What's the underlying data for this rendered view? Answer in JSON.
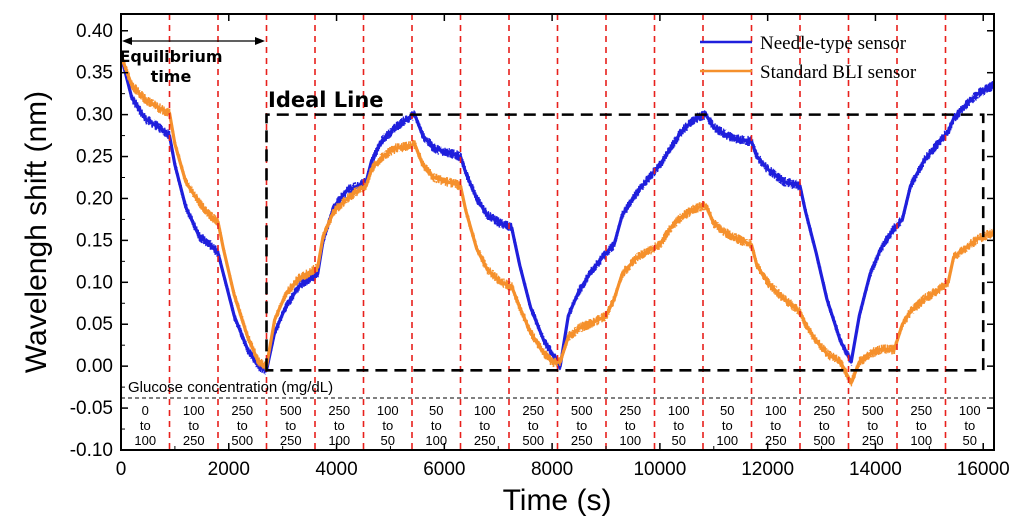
{
  "chart_data": {
    "type": "line",
    "xlabel": "Time (s)",
    "ylabel": "Wavelengh shift (nm)",
    "xlim": [
      0,
      16200
    ],
    "ylim": [
      -0.1,
      0.42
    ],
    "xticks": [
      "0",
      "2000",
      "4000",
      "6000",
      "8000",
      "10000",
      "12000",
      "14000",
      "16000"
    ],
    "yticks": [
      "-0.10",
      "-0.05",
      "0.00",
      "0.05",
      "0.10",
      "0.15",
      "0.20",
      "0.25",
      "0.30",
      "0.35",
      "0.40"
    ],
    "legend_position": "top-right",
    "series": [
      {
        "name": "Needle-type sensor",
        "color": "#1f1fdc",
        "points": [
          [
            0,
            0.37
          ],
          [
            200,
            0.32
          ],
          [
            450,
            0.295
          ],
          [
            700,
            0.285
          ],
          [
            900,
            0.275
          ],
          [
            1000,
            0.24
          ],
          [
            1200,
            0.19
          ],
          [
            1450,
            0.155
          ],
          [
            1650,
            0.145
          ],
          [
            1800,
            0.135
          ],
          [
            1900,
            0.11
          ],
          [
            2100,
            0.06
          ],
          [
            2350,
            0.02
          ],
          [
            2550,
            0.0
          ],
          [
            2700,
            -0.005
          ],
          [
            2850,
            0.04
          ],
          [
            3050,
            0.07
          ],
          [
            3300,
            0.095
          ],
          [
            3500,
            0.105
          ],
          [
            3650,
            0.11
          ],
          [
            3750,
            0.15
          ],
          [
            3950,
            0.19
          ],
          [
            4200,
            0.21
          ],
          [
            4400,
            0.215
          ],
          [
            4550,
            0.22
          ],
          [
            4650,
            0.245
          ],
          [
            4850,
            0.27
          ],
          [
            5100,
            0.285
          ],
          [
            5300,
            0.295
          ],
          [
            5450,
            0.3
          ],
          [
            5600,
            0.275
          ],
          [
            5800,
            0.26
          ],
          [
            6050,
            0.255
          ],
          [
            6300,
            0.25
          ],
          [
            6400,
            0.23
          ],
          [
            6600,
            0.2
          ],
          [
            6800,
            0.18
          ],
          [
            7050,
            0.17
          ],
          [
            7250,
            0.165
          ],
          [
            7400,
            0.12
          ],
          [
            7600,
            0.07
          ],
          [
            7850,
            0.03
          ],
          [
            8000,
            0.015
          ],
          [
            8150,
            0.0
          ],
          [
            8300,
            0.06
          ],
          [
            8500,
            0.09
          ],
          [
            8750,
            0.115
          ],
          [
            9000,
            0.135
          ],
          [
            9150,
            0.145
          ],
          [
            9300,
            0.18
          ],
          [
            9550,
            0.205
          ],
          [
            9800,
            0.225
          ],
          [
            10000,
            0.24
          ],
          [
            10200,
            0.26
          ],
          [
            10400,
            0.28
          ],
          [
            10650,
            0.295
          ],
          [
            10850,
            0.3
          ],
          [
            11000,
            0.285
          ],
          [
            11250,
            0.275
          ],
          [
            11500,
            0.27
          ],
          [
            11700,
            0.268
          ],
          [
            11800,
            0.25
          ],
          [
            12000,
            0.235
          ],
          [
            12300,
            0.22
          ],
          [
            12600,
            0.215
          ],
          [
            12700,
            0.185
          ],
          [
            12900,
            0.135
          ],
          [
            13100,
            0.08
          ],
          [
            13350,
            0.03
          ],
          [
            13550,
            0.005
          ],
          [
            13700,
            0.06
          ],
          [
            13900,
            0.11
          ],
          [
            14100,
            0.14
          ],
          [
            14350,
            0.165
          ],
          [
            14500,
            0.175
          ],
          [
            14650,
            0.215
          ],
          [
            14900,
            0.245
          ],
          [
            15150,
            0.265
          ],
          [
            15350,
            0.28
          ],
          [
            15450,
            0.295
          ],
          [
            15650,
            0.31
          ],
          [
            15900,
            0.325
          ],
          [
            16200,
            0.335
          ]
        ]
      },
      {
        "name": "Standard BLI sensor",
        "color": "#f5902c",
        "points": [
          [
            0,
            0.37
          ],
          [
            200,
            0.335
          ],
          [
            450,
            0.318
          ],
          [
            700,
            0.308
          ],
          [
            900,
            0.302
          ],
          [
            1000,
            0.265
          ],
          [
            1200,
            0.22
          ],
          [
            1450,
            0.195
          ],
          [
            1650,
            0.18
          ],
          [
            1800,
            0.172
          ],
          [
            1900,
            0.14
          ],
          [
            2100,
            0.085
          ],
          [
            2350,
            0.035
          ],
          [
            2550,
            0.005
          ],
          [
            2700,
            0.0
          ],
          [
            2850,
            0.055
          ],
          [
            3050,
            0.085
          ],
          [
            3300,
            0.105
          ],
          [
            3500,
            0.112
          ],
          [
            3650,
            0.118
          ],
          [
            3750,
            0.155
          ],
          [
            3950,
            0.185
          ],
          [
            4200,
            0.2
          ],
          [
            4400,
            0.21
          ],
          [
            4550,
            0.215
          ],
          [
            4650,
            0.235
          ],
          [
            4850,
            0.25
          ],
          [
            5100,
            0.26
          ],
          [
            5300,
            0.262
          ],
          [
            5450,
            0.265
          ],
          [
            5600,
            0.24
          ],
          [
            5800,
            0.225
          ],
          [
            6050,
            0.22
          ],
          [
            6300,
            0.215
          ],
          [
            6400,
            0.185
          ],
          [
            6600,
            0.14
          ],
          [
            6800,
            0.115
          ],
          [
            7050,
            0.1
          ],
          [
            7250,
            0.095
          ],
          [
            7400,
            0.07
          ],
          [
            7600,
            0.04
          ],
          [
            7850,
            0.015
          ],
          [
            8000,
            0.005
          ],
          [
            8150,
            0.005
          ],
          [
            8300,
            0.035
          ],
          [
            8500,
            0.045
          ],
          [
            8750,
            0.052
          ],
          [
            9000,
            0.06
          ],
          [
            9150,
            0.08
          ],
          [
            9300,
            0.11
          ],
          [
            9550,
            0.128
          ],
          [
            9800,
            0.138
          ],
          [
            10000,
            0.145
          ],
          [
            10200,
            0.165
          ],
          [
            10400,
            0.178
          ],
          [
            10650,
            0.188
          ],
          [
            10850,
            0.192
          ],
          [
            11000,
            0.17
          ],
          [
            11250,
            0.158
          ],
          [
            11500,
            0.15
          ],
          [
            11700,
            0.145
          ],
          [
            11800,
            0.12
          ],
          [
            12000,
            0.1
          ],
          [
            12300,
            0.08
          ],
          [
            12600,
            0.065
          ],
          [
            12700,
            0.05
          ],
          [
            12900,
            0.03
          ],
          [
            13100,
            0.015
          ],
          [
            13350,
            0.005
          ],
          [
            13550,
            -0.02
          ],
          [
            13700,
            0.005
          ],
          [
            13900,
            0.015
          ],
          [
            14100,
            0.02
          ],
          [
            14350,
            0.02
          ],
          [
            14500,
            0.05
          ],
          [
            14650,
            0.065
          ],
          [
            14900,
            0.08
          ],
          [
            15150,
            0.09
          ],
          [
            15350,
            0.1
          ],
          [
            15450,
            0.13
          ],
          [
            15650,
            0.14
          ],
          [
            15900,
            0.152
          ],
          [
            16200,
            0.16
          ]
        ]
      }
    ],
    "vlines": [
      900,
      1800,
      2700,
      3600,
      4500,
      5400,
      6300,
      7200,
      8100,
      9000,
      9900,
      10800,
      11700,
      12600,
      13500,
      14400,
      15300
    ],
    "ideal_line": {
      "label": "Ideal Line",
      "x": [
        2700,
        16000
      ],
      "y": [
        -0.005,
        0.3
      ]
    },
    "equilibrium": {
      "label_line1": "Equilibrium",
      "label_line2": "time",
      "x": [
        0,
        2700
      ],
      "y": 0.385
    },
    "concentration_title": "Glucose concentration (mg/dL)",
    "concentration_segments": [
      {
        "from": "0",
        "to": "100"
      },
      {
        "from": "100",
        "to": "250"
      },
      {
        "from": "250",
        "to": "500"
      },
      {
        "from": "500",
        "to": "250"
      },
      {
        "from": "250",
        "to": "100"
      },
      {
        "from": "100",
        "to": "50"
      },
      {
        "from": "50",
        "to": "100"
      },
      {
        "from": "100",
        "to": "250"
      },
      {
        "from": "250",
        "to": "500"
      },
      {
        "from": "500",
        "to": "250"
      },
      {
        "from": "250",
        "to": "100"
      },
      {
        "from": "100",
        "to": "50"
      },
      {
        "from": "50",
        "to": "100"
      },
      {
        "from": "100",
        "to": "250"
      },
      {
        "from": "250",
        "to": "500"
      },
      {
        "from": "500",
        "to": "250"
      },
      {
        "from": "250",
        "to": "100"
      },
      {
        "from": "100",
        "to": "50"
      }
    ],
    "connector_word": "to"
  }
}
